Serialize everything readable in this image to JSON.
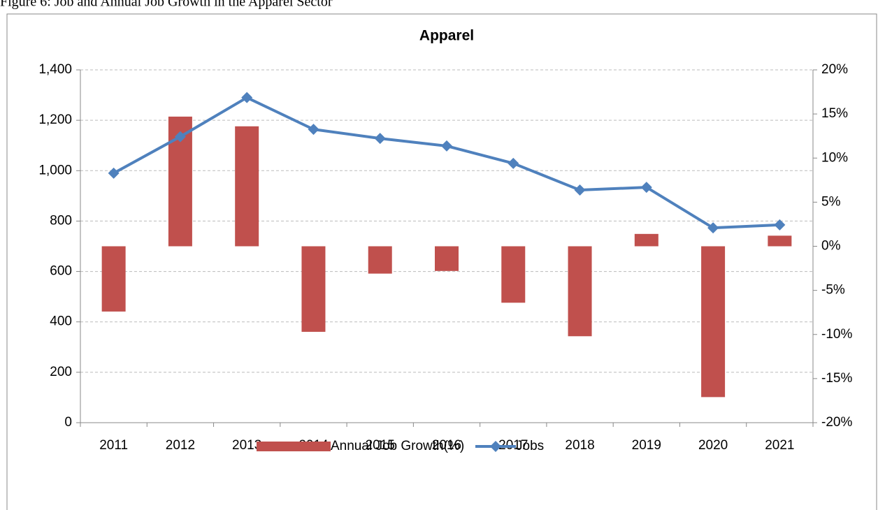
{
  "caption": "Figure 6: Job and Annual Job Growth in the Apparel Sector",
  "chart_data": {
    "type": "bar-line",
    "title": "Apparel",
    "categories": [
      "2011",
      "2012",
      "2013",
      "2014",
      "2015",
      "2016",
      "2017",
      "2018",
      "2019",
      "2020",
      "2021"
    ],
    "series": [
      {
        "name": "Annual Job Growth(%)",
        "type": "bar",
        "axis": "y2",
        "color": "#c0504d",
        "values": [
          -7.4,
          14.7,
          13.6,
          -9.7,
          -3.1,
          -2.8,
          -6.4,
          -10.2,
          1.4,
          -17.1,
          1.2
        ]
      },
      {
        "name": "Jobs",
        "type": "line",
        "axis": "y",
        "color": "#4f81bd",
        "values": [
          990,
          1135,
          1290,
          1164,
          1128,
          1098,
          1029,
          923,
          934,
          773,
          785
        ]
      }
    ],
    "ylim": [
      0,
      1400
    ],
    "yticks": [
      0,
      200,
      400,
      600,
      800,
      {
        "value": 1000,
        "label": "1,000"
      },
      {
        "value": 1200,
        "label": "1,200"
      },
      {
        "value": 1400,
        "label": "1,400"
      }
    ],
    "y2lim": [
      -20,
      20
    ],
    "y2ticks": [
      {
        "value": -20,
        "label": "-20%"
      },
      {
        "value": -15,
        "label": "-15%"
      },
      {
        "value": -10,
        "label": "-10%"
      },
      {
        "value": -5,
        "label": "-5%"
      },
      {
        "value": 0,
        "label": "0%"
      },
      {
        "value": 5,
        "label": "5%"
      },
      {
        "value": 10,
        "label": "10%"
      },
      {
        "value": 15,
        "label": "15%"
      },
      {
        "value": 20,
        "label": "20%"
      }
    ],
    "grid": true,
    "legend": "bottom"
  }
}
